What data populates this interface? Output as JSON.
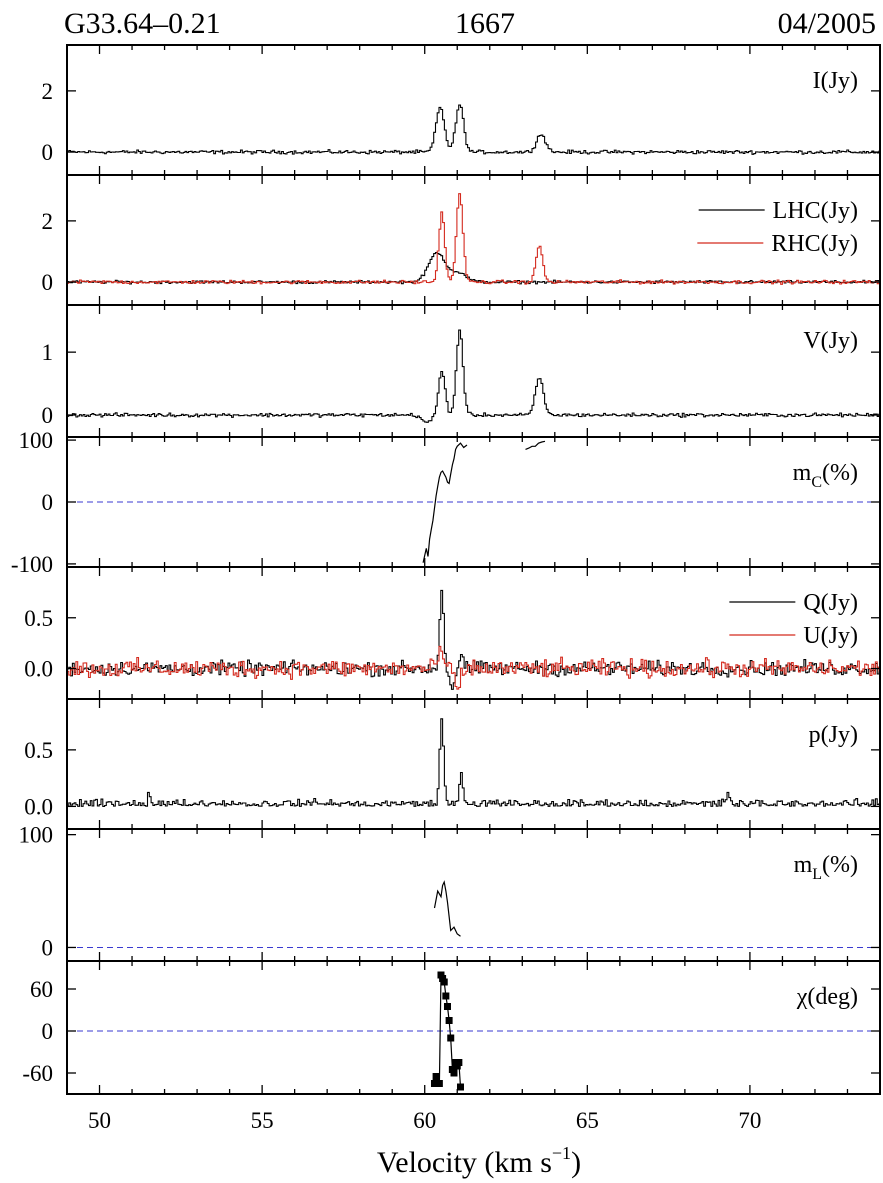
{
  "header": {
    "source": "G33.64–0.21",
    "frequency": "1667",
    "date": "04/2005"
  },
  "colors": {
    "black": "#000000",
    "red": "#d42a1e",
    "zero_line": "#3a3ad0"
  },
  "chart_data": {
    "type": "line",
    "layout": "stacked panels sharing one x axis",
    "xlabel_main": "Velocity (km s",
    "xlabel_sup": "−1",
    "xlabel_close": ")",
    "xlim": [
      49,
      74
    ],
    "xticks": [
      50,
      55,
      60,
      65,
      70
    ],
    "panels": [
      {
        "id": "I",
        "ylim": [
          -0.75,
          3.5
        ],
        "yticks": [
          0,
          2
        ],
        "labels": [
          {
            "text": "I(Jy)"
          }
        ],
        "series": [
          {
            "name": "I(Jy)",
            "color": "#000000",
            "style": "step",
            "baseline": 0,
            "noise": 0.05,
            "peaks": [
              [
                60.45,
                1.45,
                0.13
              ],
              [
                61.05,
                1.55,
                0.12
              ],
              [
                63.55,
                0.58,
                0.14
              ]
            ]
          }
        ]
      },
      {
        "id": "LR",
        "ylim": [
          -0.75,
          3.5
        ],
        "yticks": [
          0,
          2
        ],
        "labels": [
          {
            "text": "LHC(Jy)",
            "legend_color": "#000000"
          },
          {
            "text": "RHC(Jy)",
            "legend_color": "#d42a1e"
          }
        ],
        "series": [
          {
            "name": "LHC(Jy)",
            "color": "#000000",
            "style": "step",
            "baseline": 0,
            "noise": 0.04,
            "peaks": [
              [
                60.35,
                0.95,
                0.25
              ],
              [
                61.0,
                0.3,
                0.25
              ]
            ]
          },
          {
            "name": "RHC(Jy)",
            "color": "#d42a1e",
            "style": "step",
            "baseline": 0,
            "noise": 0.05,
            "peaks": [
              [
                60.5,
                2.25,
                0.09
              ],
              [
                61.05,
                2.85,
                0.1
              ],
              [
                63.5,
                1.2,
                0.1
              ]
            ]
          }
        ]
      },
      {
        "id": "V",
        "ylim": [
          -0.35,
          1.75
        ],
        "yticks": [
          0,
          1
        ],
        "labels": [
          {
            "text": "V(Jy)"
          }
        ],
        "series": [
          {
            "name": "V(Jy)",
            "color": "#000000",
            "style": "step",
            "baseline": 0,
            "noise": 0.025,
            "peaks": [
              [
                60.5,
                0.7,
                0.1
              ],
              [
                61.05,
                1.35,
                0.1
              ],
              [
                63.5,
                0.6,
                0.12
              ],
              [
                60.05,
                -0.12,
                0.15
              ]
            ]
          }
        ]
      },
      {
        "id": "mC",
        "ylim": [
          -105,
          105
        ],
        "yticks": [
          -100,
          0,
          100
        ],
        "labels": [
          {
            "text": "m",
            "sub": "C",
            "tail": "(%)"
          }
        ],
        "zero_line": true,
        "series": [
          {
            "name": "mC",
            "color": "#000000",
            "style": "line",
            "x": [
              59.95,
              60.05,
              60.1,
              60.15,
              60.2,
              60.25,
              60.3,
              60.35,
              60.4,
              60.45,
              60.5,
              60.55,
              60.6,
              60.65,
              60.7,
              60.75,
              60.8,
              60.85,
              60.9,
              60.95,
              61.0,
              61.1,
              61.2,
              61.3
            ],
            "y": [
              -98,
              -75,
              -88,
              -60,
              -45,
              -30,
              -10,
              10,
              25,
              40,
              48,
              50,
              45,
              40,
              32,
              30,
              45,
              60,
              70,
              85,
              90,
              95,
              88,
              92
            ]
          },
          {
            "name": "mC2",
            "color": "#000000",
            "style": "line",
            "x": [
              63.1,
              63.2,
              63.3,
              63.4,
              63.5,
              63.6,
              63.7
            ],
            "y": [
              85,
              87,
              90,
              90,
              95,
              97,
              98
            ]
          }
        ]
      },
      {
        "id": "QU",
        "ylim": [
          -0.3,
          1.0
        ],
        "yticks": [
          0.0,
          0.5
        ],
        "labels": [
          {
            "text": "Q(Jy)",
            "legend_color": "#000000"
          },
          {
            "text": "U(Jy)",
            "legend_color": "#d42a1e"
          }
        ],
        "series": [
          {
            "name": "Q(Jy)",
            "color": "#000000",
            "style": "step",
            "baseline": 0,
            "noise": 0.06,
            "peaks": [
              [
                60.5,
                0.8,
                0.06
              ],
              [
                60.8,
                -0.18,
                0.08
              ],
              [
                61.1,
                0.15,
                0.05
              ]
            ]
          },
          {
            "name": "U(Jy)",
            "color": "#d42a1e",
            "style": "step",
            "baseline": 0,
            "noise": 0.075,
            "peaks": [
              [
                60.45,
                0.22,
                0.06
              ],
              [
                61.0,
                -0.22,
                0.08
              ]
            ]
          }
        ]
      },
      {
        "id": "p",
        "ylim": [
          -0.2,
          0.95
        ],
        "yticks": [
          0.0,
          0.5
        ],
        "labels": [
          {
            "text": "p(Jy)"
          }
        ],
        "series": [
          {
            "name": "p(Jy)",
            "color": "#000000",
            "style": "step",
            "baseline": 0.02,
            "noise": 0.035,
            "positive": true,
            "peaks": [
              [
                60.5,
                0.75,
                0.06
              ],
              [
                61.1,
                0.28,
                0.05
              ],
              [
                51.5,
                0.1,
                0.05
              ],
              [
                69.3,
                0.1,
                0.06
              ]
            ]
          }
        ]
      },
      {
        "id": "mL",
        "ylim": [
          -12,
          105
        ],
        "yticks": [
          0,
          100
        ],
        "labels": [
          {
            "text": "m",
            "sub": "L",
            "tail": "(%)"
          }
        ],
        "zero_line": true,
        "series": [
          {
            "name": "mL",
            "color": "#000000",
            "style": "line",
            "x": [
              60.3,
              60.4,
              60.5,
              60.55,
              60.6,
              60.65,
              60.7,
              60.8,
              60.9,
              61.0,
              61.1
            ],
            "y": [
              35,
              50,
              45,
              55,
              58,
              50,
              40,
              15,
              18,
              12,
              10
            ]
          }
        ]
      },
      {
        "id": "chi",
        "ylim": [
          -90,
          100
        ],
        "yticks": [
          -60,
          0,
          60
        ],
        "labels": [
          {
            "text": "χ(deg)"
          }
        ],
        "zero_line": true,
        "series": [
          {
            "name": "chi",
            "color": "#000000",
            "style": "line",
            "markers": true,
            "x": [
              60.3,
              60.35,
              60.45,
              60.5,
              60.55,
              60.6,
              60.65,
              60.7,
              60.75,
              60.8,
              60.85,
              60.9,
              60.95,
              61.0,
              61.05,
              61.1
            ],
            "y": [
              -75,
              -65,
              -75,
              80,
              75,
              70,
              50,
              35,
              15,
              -10,
              -55,
              -60,
              -45,
              -50,
              -45,
              -80
            ]
          }
        ]
      }
    ]
  }
}
